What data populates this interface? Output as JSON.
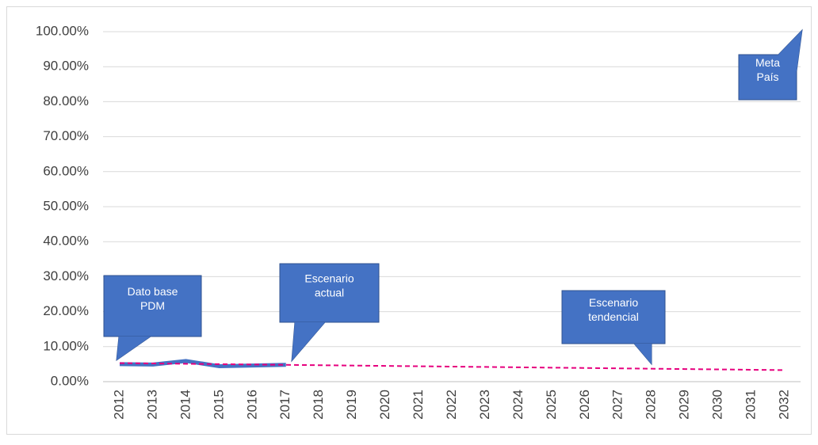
{
  "chart_data": {
    "type": "line",
    "x": [
      "2012",
      "2013",
      "2014",
      "2015",
      "2016",
      "2017",
      "2018",
      "2019",
      "2020",
      "2021",
      "2022",
      "2023",
      "2024",
      "2025",
      "2026",
      "2027",
      "2028",
      "2029",
      "2030",
      "2031",
      "2032"
    ],
    "series": [
      {
        "color": "#4472c4",
        "dash": false,
        "values": [
          5.0,
          4.9,
          5.9,
          4.4,
          4.6,
          4.8,
          null,
          null,
          null,
          null,
          null,
          null,
          null,
          null,
          null,
          null,
          null,
          null,
          null,
          null,
          null
        ]
      },
      {
        "color": "#e6007e",
        "dash": true,
        "values": [
          5.3,
          5.2,
          5.1,
          5.0,
          4.9,
          4.8,
          4.7,
          4.6,
          4.5,
          4.4,
          4.3,
          4.2,
          4.1,
          4.0,
          3.9,
          3.8,
          3.7,
          3.6,
          3.5,
          3.4,
          3.3
        ]
      }
    ],
    "ylim": [
      0,
      100
    ],
    "yticks": [
      {
        "value": 0,
        "label": "0.00%"
      },
      {
        "value": 10,
        "label": "10.00%"
      },
      {
        "value": 20,
        "label": "20.00%"
      },
      {
        "value": 30,
        "label": "30.00%"
      },
      {
        "value": 40,
        "label": "40.00%"
      },
      {
        "value": 50,
        "label": "50.00%"
      },
      {
        "value": 60,
        "label": "60.00%"
      },
      {
        "value": 70,
        "label": "70.00%"
      },
      {
        "value": 80,
        "label": "80.00%"
      },
      {
        "value": 90,
        "label": "90.00%"
      },
      {
        "value": 100,
        "label": "100.00%"
      }
    ],
    "grid": true,
    "annotations": [
      {
        "lines": [
          "Dato base",
          "PDM"
        ]
      },
      {
        "lines": [
          "Escenario",
          "actual"
        ]
      },
      {
        "lines": [
          "Escenario",
          "tendencial"
        ]
      },
      {
        "lines": [
          "Meta",
          "País"
        ]
      }
    ]
  }
}
